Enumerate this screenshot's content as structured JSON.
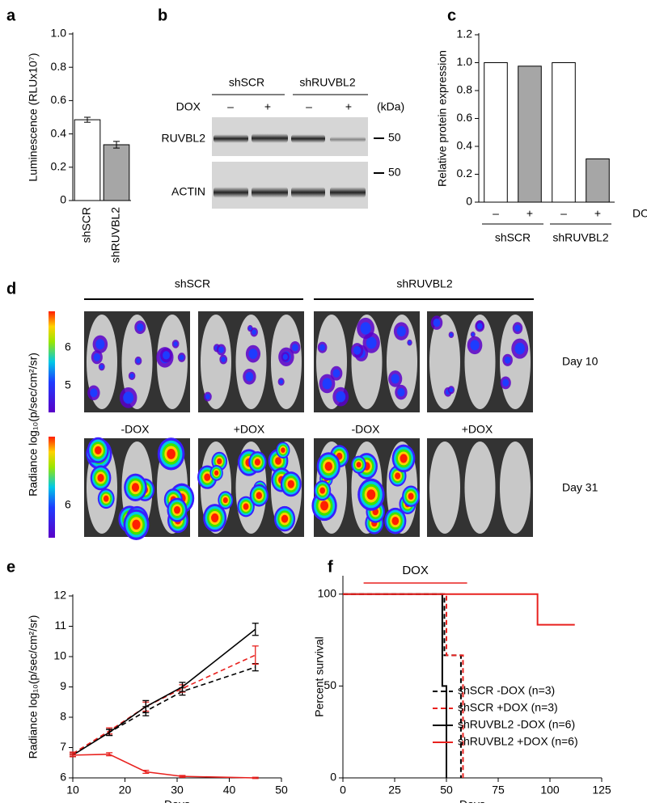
{
  "panel_letters": [
    "a",
    "b",
    "c",
    "d",
    "e",
    "f"
  ],
  "chart_data": [
    {
      "type": "bar",
      "ylabel": "Luminescence (RLUx10⁷)",
      "categories": [
        "shSCR",
        "shRUVBL2"
      ],
      "values": [
        0.485,
        0.335
      ],
      "errors": [
        0.015,
        0.02
      ],
      "colors": [
        "#ffffff",
        "#a6a6a6"
      ],
      "ylim": [
        0,
        1
      ],
      "yticks": [
        0,
        0.2,
        0.4,
        0.6,
        0.8,
        {
          "value": 1,
          "label": "1.0"
        }
      ]
    },
    {
      "type": "bar",
      "ylabel": "Relative protein expression",
      "categories": [
        "–",
        "+",
        "–",
        "+"
      ],
      "groups": [
        "shSCR",
        "shRUVBL2"
      ],
      "annotation": "DOX",
      "values": [
        1,
        0.975,
        1,
        0.31
      ],
      "colors": [
        "#ffffff",
        "#a6a6a6",
        "#ffffff",
        "#a6a6a6"
      ],
      "ylim": [
        0,
        1.2
      ],
      "yticks": [
        0,
        0.2,
        0.4,
        0.6,
        0.8,
        {
          "value": 1,
          "label": "1.0"
        },
        1.2
      ]
    },
    {
      "type": "line",
      "xlabel": "Days",
      "ylabel": "Radiance log₁₀(p/sec/cm²/sr)",
      "x": [
        10,
        17,
        24,
        31,
        45
      ],
      "xlim": [
        10,
        50
      ],
      "xticks": [
        10,
        20,
        30,
        40,
        50
      ],
      "ylim": [
        6,
        12
      ],
      "yticks": [
        6,
        7,
        8,
        9,
        10,
        11,
        12
      ],
      "series": [
        {
          "color": "#000000",
          "dashed": true,
          "values": [
            6.8,
            7.5,
            8.2,
            8.85,
            9.65
          ],
          "errors": [
            0.05,
            0.1,
            0.15,
            0.12,
            0.12
          ]
        },
        {
          "color": "#e8211e",
          "dashed": true,
          "values": [
            6.8,
            7.55,
            8.35,
            8.95,
            10.05
          ],
          "errors": [
            0.05,
            0.1,
            0.15,
            0.12,
            0.3
          ]
        },
        {
          "color": "#000000",
          "dashed": false,
          "values": [
            6.75,
            7.5,
            8.35,
            9.0,
            10.9
          ],
          "errors": [
            0.05,
            0.1,
            0.2,
            0.15,
            0.2
          ]
        },
        {
          "color": "#e8211e",
          "dashed": false,
          "values": [
            6.75,
            6.78,
            6.2,
            6.05,
            6.0
          ],
          "errors": [
            0.05,
            0.05,
            0.05,
            0.03,
            0.02
          ]
        }
      ]
    },
    {
      "type": "step",
      "xlabel": "Days",
      "ylabel": "Percent survival",
      "xlim": [
        0,
        125
      ],
      "xticks": [
        0,
        25,
        50,
        75,
        100,
        125
      ],
      "ylim": [
        0,
        110
      ],
      "yticks": [
        0,
        50,
        100
      ],
      "annotation": {
        "label": "DOX",
        "x": [
          10,
          60
        ],
        "color": "#e8211e"
      },
      "series": [
        {
          "name": "shSCR -DOX (n=3)",
          "color": "#000000",
          "dashed": true,
          "x": [
            0,
            49,
            57
          ],
          "values": [
            100,
            66.7,
            0
          ]
        },
        {
          "name": "shSCR +DOX (n=3)",
          "color": "#e8211e",
          "dashed": true,
          "x": [
            0,
            50,
            58
          ],
          "values": [
            100,
            66.7,
            0
          ]
        },
        {
          "name": "shRUVBL2 -DOX (n=6)",
          "color": "#000000",
          "dashed": false,
          "x": [
            0,
            48,
            50
          ],
          "values": [
            100,
            50,
            0
          ]
        },
        {
          "name": "shRUVBL2 +DOX (n=6)",
          "color": "#e8211e",
          "dashed": false,
          "x": [
            0,
            94,
            112
          ],
          "values": [
            100,
            83.3,
            83.3
          ]
        }
      ]
    }
  ],
  "blot": {
    "groups": [
      "shSCR",
      "shRUVBL2"
    ],
    "treatment": "DOX",
    "signs": [
      "–",
      "+",
      "–",
      "+"
    ],
    "unit": "(kDa)",
    "rows": [
      {
        "label": "RUVBL2",
        "marker": "50"
      },
      {
        "label": "ACTIN",
        "marker": "50"
      }
    ]
  },
  "imaging": {
    "groups": [
      "shSCR",
      "shRUVBL2"
    ],
    "days": [
      "Day 10",
      "Day 31"
    ],
    "conditions": [
      "-DOX",
      "+DOX",
      "-DOX",
      "+DOX"
    ],
    "condition_colors": [
      "#000000",
      "#e8211e",
      "#000000",
      "#e8211e"
    ],
    "colorbar_label": "Radiance log₁₀(p/sec/cm²/sr)",
    "colorbar_ticks": [
      [
        "6",
        "5"
      ],
      [
        "6"
      ]
    ]
  }
}
